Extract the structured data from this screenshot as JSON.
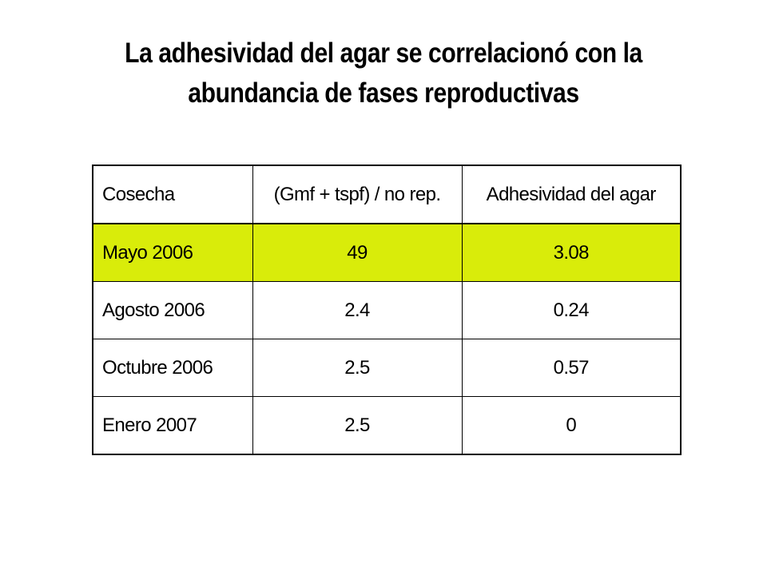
{
  "title": {
    "line1": "La adhesividad del agar se correlacionó con la",
    "line2": "abundancia de fases reproductivas"
  },
  "table": {
    "headers": [
      "Cosecha",
      "(Gmf + tspf) / no rep.",
      "Adhesividad del agar"
    ],
    "rows": [
      {
        "cosecha": "Mayo 2006",
        "ratio": "49",
        "adhesividad": "3.08",
        "highlighted": true
      },
      {
        "cosecha": "Agosto 2006",
        "ratio": "2.4",
        "adhesividad": "0.24",
        "highlighted": false
      },
      {
        "cosecha": "Octubre 2006",
        "ratio": "2.5",
        "adhesividad": "0.57",
        "highlighted": false
      },
      {
        "cosecha": "Enero 2007",
        "ratio": "2.5",
        "adhesividad": "0",
        "highlighted": false
      }
    ]
  },
  "colors": {
    "highlight": "#d9ec0a",
    "text": "#000000",
    "background": "#ffffff"
  }
}
